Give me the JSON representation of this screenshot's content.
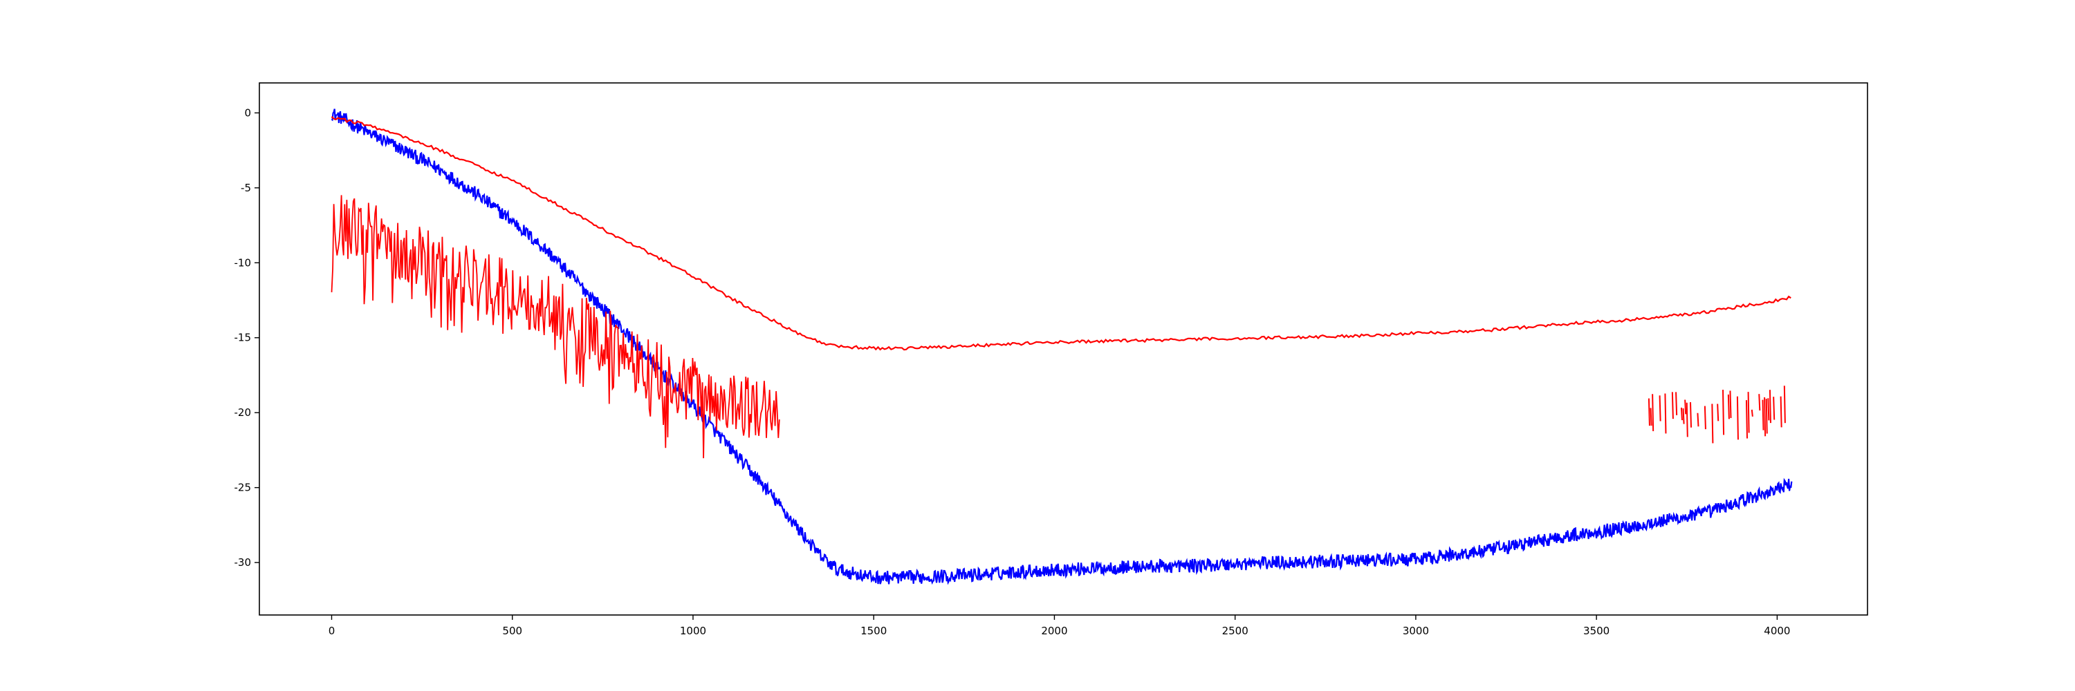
{
  "chart_data": {
    "type": "line",
    "title": "",
    "xlabel": "",
    "ylabel": "",
    "xlim": [
      -200,
      4250
    ],
    "ylim": [
      -33.5,
      2
    ],
    "xticks": [
      0,
      500,
      1000,
      1500,
      2000,
      2500,
      3000,
      3500,
      4000
    ],
    "yticks": [
      0,
      -5,
      -10,
      -15,
      -20,
      -25,
      -30
    ],
    "grid": false,
    "legend": "none",
    "series": [
      {
        "color": "#0000ff",
        "style": "noisy line",
        "noise_amplitude": 0.45,
        "x": [
          0,
          100,
          200,
          300,
          400,
          500,
          600,
          700,
          800,
          900,
          1000,
          1100,
          1200,
          1300,
          1350,
          1400,
          1500,
          1600,
          1700,
          1800,
          1900,
          2000,
          2200,
          2400,
          2600,
          2800,
          3000,
          3200,
          3400,
          3600,
          3800,
          3900,
          4000,
          4040
        ],
        "values": [
          0,
          -1.3,
          -2.5,
          -3.8,
          -5.4,
          -7.2,
          -9.3,
          -11.8,
          -14.3,
          -17.0,
          -19.5,
          -22.3,
          -25.0,
          -28.0,
          -29.5,
          -30.5,
          -31.0,
          -31.0,
          -30.9,
          -30.8,
          -30.6,
          -30.5,
          -30.3,
          -30.2,
          -30.0,
          -29.9,
          -29.8,
          -29.2,
          -28.3,
          -27.6,
          -26.7,
          -25.9,
          -25.1,
          -24.8
        ]
      },
      {
        "color": "#ff0000",
        "style": "smooth line",
        "noise_amplitude": 0.1,
        "x": [
          0,
          100,
          200,
          300,
          400,
          500,
          600,
          700,
          800,
          900,
          1000,
          1100,
          1200,
          1300,
          1350,
          1400,
          1500,
          1600,
          1700,
          1800,
          1900,
          2000,
          2200,
          2400,
          2600,
          2800,
          3000,
          3200,
          3400,
          3600,
          3800,
          3900,
          4000,
          4040
        ],
        "values": [
          -0.3,
          -0.8,
          -1.6,
          -2.5,
          -3.5,
          -4.5,
          -5.8,
          -7.1,
          -8.4,
          -9.6,
          -10.9,
          -12.3,
          -13.6,
          -14.8,
          -15.3,
          -15.6,
          -15.7,
          -15.7,
          -15.6,
          -15.5,
          -15.4,
          -15.3,
          -15.2,
          -15.1,
          -15.0,
          -14.9,
          -14.7,
          -14.5,
          -14.1,
          -13.8,
          -13.3,
          -12.9,
          -12.5,
          -12.3
        ]
      },
      {
        "color": "#ff0000",
        "style": "spiky line",
        "segments": [
          {
            "x": [
              0,
              100,
              200,
              300,
              400,
              500,
              600,
              700,
              800,
              900,
              1000,
              1100,
              1150,
              1240
            ],
            "values": [
              -7.2,
              -8.1,
              -9.1,
              -10.0,
              -11.0,
              -12.0,
              -13.0,
              -14.3,
              -15.8,
              -17.3,
              -18.5,
              -19.3,
              -19.5,
              -20.1
            ],
            "noise_amplitude": 2.2
          },
          {
            "x": [
              3640,
              3700,
              3800,
              3900,
              4000,
              4040
            ],
            "values": [
              -19.6,
              -19.7,
              -19.8,
              -19.6,
              -19.3,
              -19.0
            ],
            "noise_amplitude": 1.6,
            "gappy": true
          }
        ]
      }
    ]
  }
}
